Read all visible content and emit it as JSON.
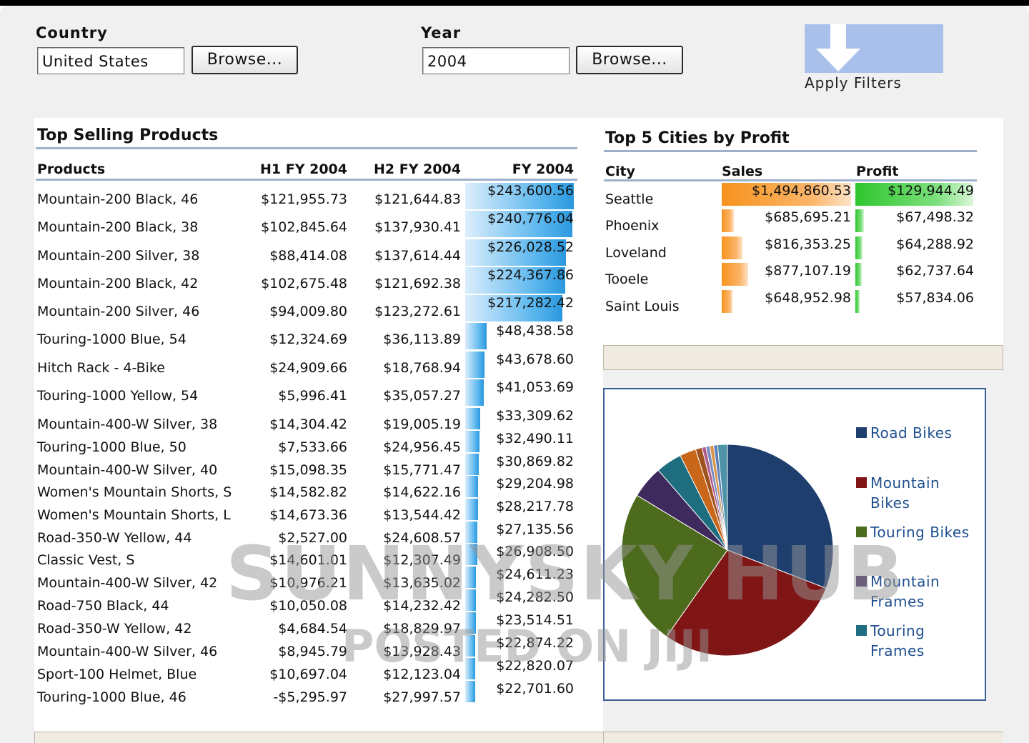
{
  "filters": {
    "country_label": "Country",
    "country_value": "United States",
    "year_label": "Year",
    "year_value": "2004",
    "browse_label": "Browse...",
    "apply_label": "Apply Filters"
  },
  "top_products": {
    "title": "Top Selling Products",
    "headers": [
      "Products",
      "H1 FY 2004",
      "H2 FY 2004",
      "FY 2004"
    ],
    "rows": [
      {
        "product": "Mountain-200 Black, 46",
        "h1": "$121,955.73",
        "h2": "$121,644.83",
        "fy": "$243,600.56",
        "fy_value": 243600.56
      },
      {
        "product": "Mountain-200 Black, 38",
        "h1": "$102,845.64",
        "h2": "$137,930.41",
        "fy": "$240,776.04",
        "fy_value": 240776.04
      },
      {
        "product": "Mountain-200 Silver, 38",
        "h1": "$88,414.08",
        "h2": "$137,614.44",
        "fy": "$226,028.52",
        "fy_value": 226028.52
      },
      {
        "product": "Mountain-200 Black, 42",
        "h1": "$102,675.48",
        "h2": "$121,692.38",
        "fy": "$224,367.86",
        "fy_value": 224367.86
      },
      {
        "product": "Mountain-200 Silver, 46",
        "h1": "$94,009.80",
        "h2": "$123,272.61",
        "fy": "$217,282.42",
        "fy_value": 217282.42
      },
      {
        "product": "Touring-1000 Blue, 54",
        "h1": "$12,324.69",
        "h2": "$36,113.89",
        "fy": "$48,438.58",
        "fy_value": 48438.58
      },
      {
        "product": "Hitch Rack - 4-Bike",
        "h1": "$24,909.66",
        "h2": "$18,768.94",
        "fy": "$43,678.60",
        "fy_value": 43678.6
      },
      {
        "product": "Touring-1000 Yellow, 54",
        "h1": "$5,996.41",
        "h2": "$35,057.27",
        "fy": "$41,053.69",
        "fy_value": 41053.69
      },
      {
        "product": "Mountain-400-W Silver, 38",
        "h1": "$14,304.42",
        "h2": "$19,005.19",
        "fy": "$33,309.62",
        "fy_value": 33309.62
      },
      {
        "product": "Touring-1000 Blue, 50",
        "h1": "$7,533.66",
        "h2": "$24,956.45",
        "fy": "$32,490.11",
        "fy_value": 32490.11
      },
      {
        "product": "Mountain-400-W Silver, 40",
        "h1": "$15,098.35",
        "h2": "$15,771.47",
        "fy": "$30,869.82",
        "fy_value": 30869.82
      },
      {
        "product": "Women's Mountain Shorts, S",
        "h1": "$14,582.82",
        "h2": "$14,622.16",
        "fy": "$29,204.98",
        "fy_value": 29204.98
      },
      {
        "product": "Women's Mountain Shorts, L",
        "h1": "$14,673.36",
        "h2": "$13,544.42",
        "fy": "$28,217.78",
        "fy_value": 28217.78
      },
      {
        "product": "Road-350-W Yellow, 44",
        "h1": "$2,527.00",
        "h2": "$24,608.57",
        "fy": "$27,135.56",
        "fy_value": 27135.56
      },
      {
        "product": "Classic Vest, S",
        "h1": "$14,601.01",
        "h2": "$12,307.49",
        "fy": "$26,908.50",
        "fy_value": 26908.5
      },
      {
        "product": "Mountain-400-W Silver, 42",
        "h1": "$10,976.21",
        "h2": "$13,635.02",
        "fy": "$24,611.23",
        "fy_value": 24611.23
      },
      {
        "product": "Road-750 Black, 44",
        "h1": "$10,050.08",
        "h2": "$14,232.42",
        "fy": "$24,282.50",
        "fy_value": 24282.5
      },
      {
        "product": "Road-350-W Yellow, 42",
        "h1": "$4,684.54",
        "h2": "$18,829.97",
        "fy": "$23,514.51",
        "fy_value": 23514.51
      },
      {
        "product": "Mountain-400-W Silver, 46",
        "h1": "$8,945.79",
        "h2": "$13,928.43",
        "fy": "$22,874.22",
        "fy_value": 22874.22
      },
      {
        "product": "Sport-100 Helmet, Blue",
        "h1": "$10,697.04",
        "h2": "$12,123.04",
        "fy": "$22,820.07",
        "fy_value": 22820.07
      },
      {
        "product": "Touring-1000 Blue, 46",
        "h1": "-$5,295.97",
        "h2": "$27,997.57",
        "fy": "$22,701.60",
        "fy_value": 22701.6
      }
    ]
  },
  "top_cities": {
    "title": "Top 5 Cities by Profit",
    "headers": [
      "City",
      "Sales",
      "Profit"
    ],
    "rows": [
      {
        "city": "Seattle",
        "sales": "$1,494,860.53",
        "profit": "$129,944.49",
        "sales_value": 1494860.53,
        "profit_value": 129944.49
      },
      {
        "city": "Phoenix",
        "sales": "$685,695.21",
        "profit": "$67,498.32",
        "sales_value": 685695.21,
        "profit_value": 67498.32
      },
      {
        "city": "Loveland",
        "sales": "$816,353.25",
        "profit": "$64,288.92",
        "sales_value": 816353.25,
        "profit_value": 64288.92
      },
      {
        "city": "Tooele",
        "sales": "$877,107.19",
        "profit": "$62,737.64",
        "sales_value": 877107.19,
        "profit_value": 62737.64
      },
      {
        "city": "Saint Louis",
        "sales": "$648,952.98",
        "profit": "$57,834.06",
        "sales_value": 648952.98,
        "profit_value": 57834.06
      }
    ]
  },
  "colors": {
    "bar_blue": "#2a98de",
    "bar_orange": "#f7931e",
    "bar_green": "#2ec62e",
    "rule": "#9eb0cc",
    "legend_text": "#1f4f8f"
  },
  "chart_data": {
    "type": "pie",
    "legend_position": "right",
    "legend": [
      "Road Bikes",
      "Mountain Bikes",
      "Touring Bikes",
      "Mountain Frames",
      "Touring Frames"
    ],
    "slices": [
      {
        "name": "Road Bikes",
        "value": 31,
        "color": "#1e3f6e"
      },
      {
        "name": "Mountain Bikes",
        "value": 29,
        "color": "#7f1515"
      },
      {
        "name": "Touring Bikes",
        "value": 24,
        "color": "#4c6b1c"
      },
      {
        "name": "Mountain Frames",
        "value": 5,
        "color": "#3f2a5e"
      },
      {
        "name": "Touring Frames",
        "value": 4,
        "color": "#1e6e80"
      },
      {
        "name": "",
        "value": 2.5,
        "color": "#c8661a"
      },
      {
        "name": "",
        "value": 1,
        "color": "#a0521e"
      },
      {
        "name": "",
        "value": 0.6,
        "color": "#b05a8a"
      },
      {
        "name": "",
        "value": 0.6,
        "color": "#7a8cc0"
      },
      {
        "name": "",
        "value": 0.6,
        "color": "#d6954a"
      },
      {
        "name": "",
        "value": 0.6,
        "color": "#5a7fb8"
      },
      {
        "name": "",
        "value": 1.5,
        "color": "#4e93a8"
      }
    ]
  },
  "watermark": {
    "line1": "SUNNYSKY HUB",
    "line2": "POSTED ON JIJI"
  }
}
